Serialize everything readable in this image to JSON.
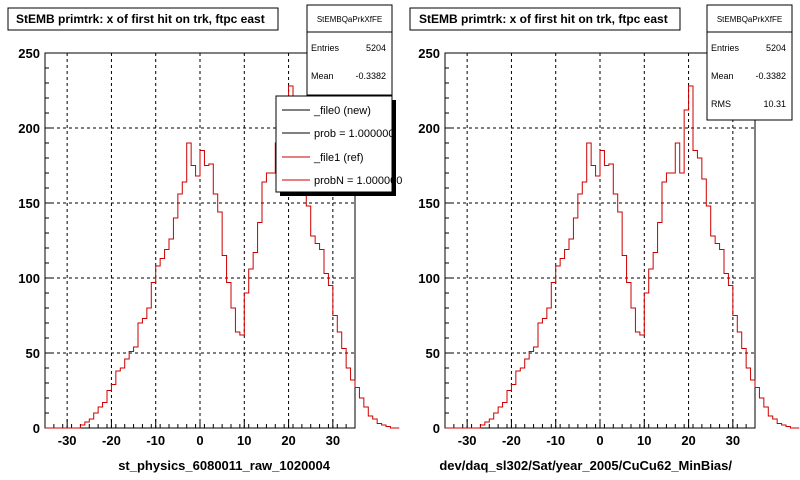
{
  "chart_data": [
    {
      "type": "histogram",
      "title": "StEMB primtrk: x of first hit on trk, ftpc east",
      "xlabel": "st_physics_6080011_raw_1020004",
      "xlim": [
        -35,
        35
      ],
      "ylim": [
        0,
        250
      ],
      "xticks": [
        "-30",
        "-20",
        "-10",
        "0",
        "10",
        "20",
        "30"
      ],
      "yticks": [
        "0",
        "50",
        "100",
        "150",
        "200",
        "250"
      ],
      "grid": true,
      "stats": {
        "name": "StEMBQaPrkXfFE",
        "rows": [
          {
            "label": "Entries",
            "value": "5204"
          },
          {
            "label": "Mean",
            "value": "-0.3382"
          }
        ]
      },
      "legend": {
        "position": "top-right",
        "entries": [
          {
            "label": "_file0 (new)",
            "color": "#000000"
          },
          {
            "label": "prob = 1.000000",
            "color": "#000000"
          },
          {
            "label": "_file1 (ref)",
            "color": "#cc0000"
          },
          {
            "label": "probN = 1.000000",
            "color": "#cc0000"
          }
        ]
      },
      "series": [
        {
          "color": "#cc0000",
          "x_start": -35,
          "bin_width": 1,
          "values": [
            0,
            0,
            0,
            0,
            0,
            0,
            0,
            0,
            2,
            4,
            6,
            10,
            14,
            17,
            25,
            29,
            38,
            40,
            46,
            51,
            54,
            70,
            73,
            80,
            97,
            108,
            113,
            119,
            126,
            140,
            156,
            164,
            190,
            175,
            168,
            185,
            175,
            176,
            156,
            144,
            115,
            97,
            80,
            64,
            62,
            90,
            106,
            117,
            137,
            164,
            170,
            170,
            190,
            170,
            212,
            228,
            185,
            180,
            166,
            148,
            128,
            123,
            119,
            103,
            95,
            75,
            64,
            53,
            40,
            32,
            27,
            20,
            14,
            8,
            6,
            3,
            2,
            1,
            0,
            0
          ]
        }
      ]
    },
    {
      "type": "histogram",
      "title": "StEMB primtrk: x of first hit on trk, ftpc east",
      "xlabel": "dev/daq_sl302/Sat/year_2005/CuCu62_MinBias/",
      "xlim": [
        -35,
        35
      ],
      "ylim": [
        0,
        250
      ],
      "xticks": [
        "-30",
        "-20",
        "-10",
        "0",
        "10",
        "20",
        "30"
      ],
      "yticks": [
        "0",
        "50",
        "100",
        "150",
        "200",
        "250"
      ],
      "grid": true,
      "stats": {
        "name": "StEMBQaPrkXfFE",
        "rows": [
          {
            "label": "Entries",
            "value": "5204"
          },
          {
            "label": "Mean",
            "value": "-0.3382"
          },
          {
            "label": "RMS",
            "value": "10.31"
          }
        ]
      },
      "series": [
        {
          "color": "#cc0000",
          "x_start": -35,
          "bin_width": 1,
          "values": [
            0,
            0,
            0,
            0,
            0,
            0,
            0,
            0,
            2,
            4,
            6,
            10,
            14,
            17,
            25,
            29,
            38,
            40,
            46,
            51,
            54,
            70,
            73,
            80,
            97,
            108,
            113,
            119,
            126,
            140,
            156,
            164,
            190,
            175,
            168,
            185,
            175,
            176,
            156,
            144,
            115,
            97,
            80,
            64,
            62,
            90,
            106,
            117,
            137,
            164,
            170,
            170,
            190,
            170,
            212,
            228,
            185,
            180,
            166,
            148,
            128,
            123,
            119,
            103,
            95,
            75,
            64,
            53,
            40,
            32,
            27,
            20,
            14,
            8,
            6,
            3,
            2,
            1,
            0,
            0
          ]
        }
      ]
    }
  ]
}
